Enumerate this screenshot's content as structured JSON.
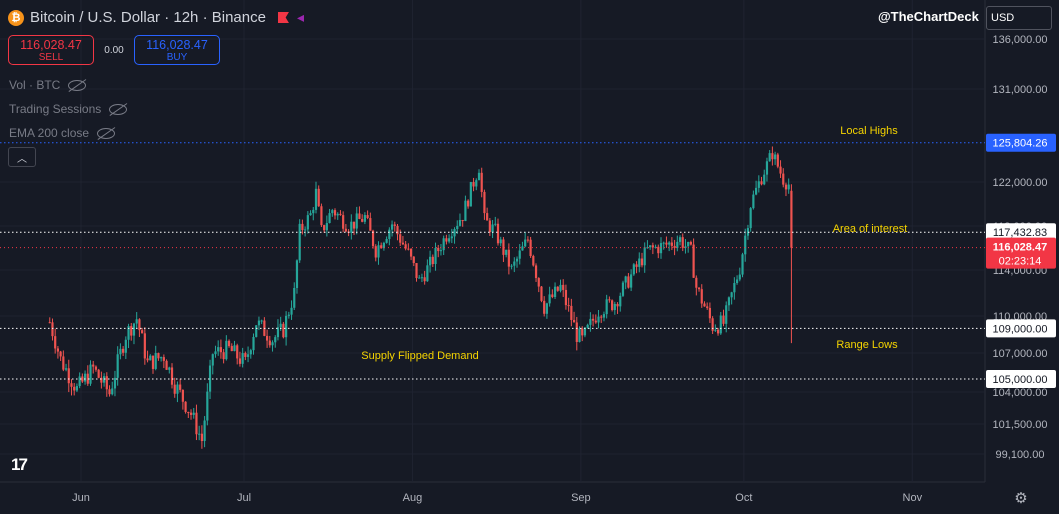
{
  "header": {
    "symbol": "Bitcoin / U.S. Dollar · 12h · Binance",
    "btc_icon": "bitcoin-icon",
    "flag_icon": "flag-icon",
    "alert_icon": "triangle-icon"
  },
  "trade": {
    "sell_price": "116,028.47",
    "sell_label": "SELL",
    "spread": "0.00",
    "buy_price": "116,028.47",
    "buy_label": "BUY"
  },
  "indicators": [
    {
      "label": "Vol · BTC"
    },
    {
      "label": "Trading Sessions"
    },
    {
      "label": "EMA 200 close"
    }
  ],
  "watermark": "@TheChartDeck",
  "currency": "USD",
  "logo_text": "17",
  "colors": {
    "background": "#161a25",
    "up": "#26a69a",
    "down": "#ef5350",
    "annotation": "#f5d400",
    "price_tag": "#f23645",
    "high_tag": "#2962ff"
  },
  "chart_data": {
    "type": "candlestick",
    "timeframe": "12h",
    "x_ticks": [
      "Jun",
      "Jul",
      "Aug",
      "Sep",
      "Oct",
      "Nov"
    ],
    "y_ticks": [
      "136,000.00",
      "131,000.00",
      "122,000.00",
      "118,000.00",
      "114,000.00",
      "110,000.00",
      "107,000.00",
      "104,000.00",
      "101,500.00",
      "99,100.00"
    ],
    "horizontal_levels": [
      {
        "label": "Local Highs",
        "value": 125804.26,
        "value_text": "125,804.26",
        "color": "#2962ff",
        "style": "dotted"
      },
      {
        "label": "Area of interest",
        "value": 117432.83,
        "value_text": "117,432.83",
        "color": "#ffffff",
        "style": "dotted"
      },
      {
        "label": "Range Lows",
        "value": 109000.0,
        "value_text": "109,000.00",
        "color": "#ffffff",
        "style": "dotted"
      },
      {
        "label": "",
        "value": 105000.0,
        "value_text": "105,000.00",
        "color": "#ffffff",
        "style": "dotted"
      }
    ],
    "annotations": [
      "Local Highs",
      "Area of interest",
      "Range Lows",
      "Supply Flipped Demand"
    ],
    "current_price": {
      "value": 116028.47,
      "value_text": "116,028.47",
      "countdown": "02:23:14"
    },
    "close_path": [
      [
        "2025-05-26",
        109500
      ],
      [
        "2025-05-28",
        106500
      ],
      [
        "2025-05-31",
        104200
      ],
      [
        "2025-06-03",
        105800
      ],
      [
        "2025-06-06",
        103900
      ],
      [
        "2025-06-09",
        108500
      ],
      [
        "2025-06-11",
        109800
      ],
      [
        "2025-06-13",
        106200
      ],
      [
        "2025-06-16",
        106800
      ],
      [
        "2025-06-18",
        104600
      ],
      [
        "2025-06-21",
        102300
      ],
      [
        "2025-06-23",
        100200
      ],
      [
        "2025-06-25",
        107000
      ],
      [
        "2025-06-28",
        107300
      ],
      [
        "2025-07-01",
        106200
      ],
      [
        "2025-07-03",
        109500
      ],
      [
        "2025-07-06",
        108100
      ],
      [
        "2025-07-08",
        108900
      ],
      [
        "2025-07-10",
        112000
      ],
      [
        "2025-07-11",
        117500
      ],
      [
        "2025-07-13",
        119000
      ],
      [
        "2025-07-14",
        121000
      ],
      [
        "2025-07-15",
        117500
      ],
      [
        "2025-07-17",
        119500
      ],
      [
        "2025-07-20",
        118000
      ],
      [
        "2025-07-23",
        118800
      ],
      [
        "2025-07-25",
        115800
      ],
      [
        "2025-07-28",
        118200
      ],
      [
        "2025-07-31",
        115500
      ],
      [
        "2025-08-02",
        113000
      ],
      [
        "2025-08-04",
        114500
      ],
      [
        "2025-08-07",
        117200
      ],
      [
        "2025-08-10",
        119000
      ],
      [
        "2025-08-13",
        123500
      ],
      [
        "2025-08-14",
        118500
      ],
      [
        "2025-08-16",
        117500
      ],
      [
        "2025-08-19",
        114000
      ],
      [
        "2025-08-22",
        116800
      ],
      [
        "2025-08-25",
        110800
      ],
      [
        "2025-08-28",
        112500
      ],
      [
        "2025-08-31",
        108500
      ],
      [
        "2025-09-01",
        108000
      ],
      [
        "2025-09-04",
        110500
      ],
      [
        "2025-09-07",
        111200
      ],
      [
        "2025-09-10",
        113500
      ],
      [
        "2025-09-13",
        115800
      ],
      [
        "2025-09-16",
        116200
      ],
      [
        "2025-09-19",
        116800
      ],
      [
        "2025-09-21",
        115600
      ],
      [
        "2025-09-22",
        112500
      ],
      [
        "2025-09-25",
        109200
      ],
      [
        "2025-09-27",
        109400
      ],
      [
        "2025-09-30",
        114200
      ],
      [
        "2025-10-02",
        120000
      ],
      [
        "2025-10-04",
        122500
      ],
      [
        "2025-10-06",
        124800
      ],
      [
        "2025-10-08",
        122300
      ],
      [
        "2025-10-09",
        121800
      ],
      [
        "2025-10-10",
        116028.47
      ]
    ]
  }
}
